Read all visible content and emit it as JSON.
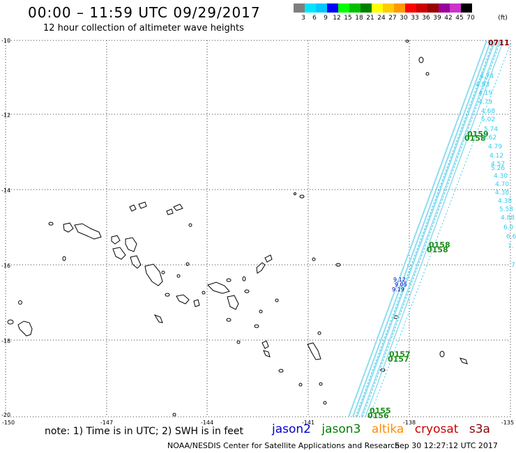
{
  "header": {
    "title": "00:00 – 11:59 UTC 09/29/2017",
    "subtitle": "12 hour collection of altimeter wave heights"
  },
  "color_scale": {
    "labels": [
      "3",
      "6",
      "9",
      "12",
      "15",
      "18",
      "21",
      "24",
      "27",
      "30",
      "33",
      "36",
      "39",
      "42",
      "45",
      "70"
    ],
    "unit": "(ft)",
    "colors": [
      "#7f7f7f",
      "#00e5ff",
      "#00c8ff",
      "#0000ff",
      "#00ff00",
      "#00c000",
      "#008000",
      "#ffff00",
      "#ffcc00",
      "#ff9900",
      "#ff0000",
      "#cc0000",
      "#990000",
      "#990099",
      "#cc33cc",
      "#000000"
    ]
  },
  "axes": {
    "lat_labels": [
      "-10",
      "-12",
      "-14",
      "-16",
      "-18",
      "-20"
    ],
    "lon_labels": [
      "-150",
      "-147",
      "-144",
      "-141",
      "-138",
      "-135"
    ]
  },
  "track_labels": {
    "times": [
      {
        "text": "0711",
        "color": "#8b0000"
      },
      {
        "text": "0159",
        "color": "#1a8f1a"
      },
      {
        "text": "0158",
        "color": "#1a8f1a"
      },
      {
        "text": "0158",
        "color": "#1a8f1a"
      },
      {
        "text": "0158",
        "color": "#1a8f1a"
      },
      {
        "text": "0157",
        "color": "#1a8f1a"
      },
      {
        "text": "0157",
        "color": "#1a8f1a"
      },
      {
        "text": "0155",
        "color": "#1a8f1a"
      },
      {
        "text": "0156",
        "color": "#1a8f1a"
      }
    ],
    "heights": [
      "4.74",
      "4.93",
      "4.19",
      "4.79",
      "4.68",
      "5.02",
      "5.74",
      "5.62",
      "4.79",
      "4.12",
      "4.57",
      "5.26",
      "4.30",
      "4.70",
      "4.38",
      "4.38",
      "5.58",
      "4.88",
      "6.0",
      "6.6",
      "7.",
      "7"
    ],
    "heights_color": "#33ccee",
    "jason2_values": [
      "9.12",
      "9.19",
      "9.05"
    ],
    "jason2_color": "#0000cc"
  },
  "footer": {
    "note": "note: 1) Time is in UTC; 2) SWH is in feet",
    "satellites": [
      {
        "name": "jason2",
        "color": "#0000cc"
      },
      {
        "name": "jason3",
        "color": "#008000"
      },
      {
        "name": "altika",
        "color": "#ff8c00"
      },
      {
        "name": "cryosat",
        "color": "#cc0000"
      },
      {
        "name": "s3a",
        "color": "#8b0000"
      }
    ],
    "credit": "NOAA/NESDIS Center for Satellite Applications and Research",
    "timestamp": "Sep 30 12:27:12 UTC 2017"
  }
}
